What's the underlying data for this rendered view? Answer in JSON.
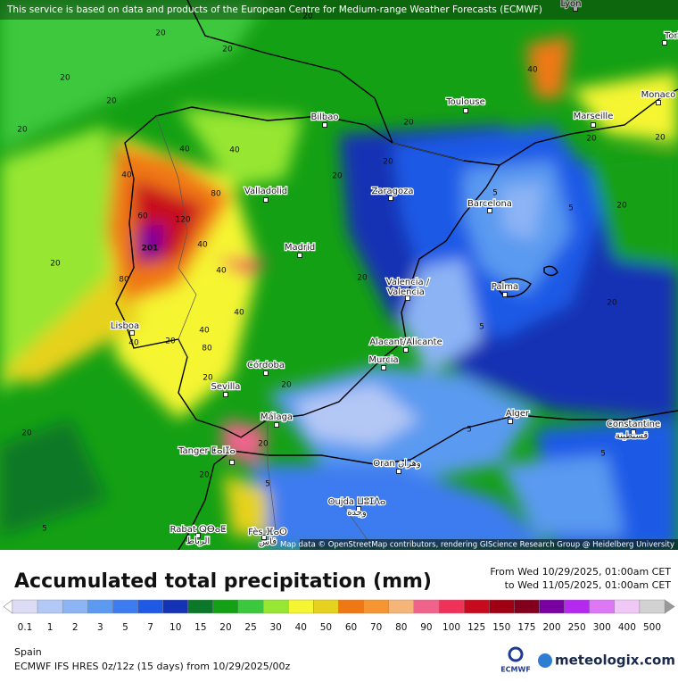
{
  "banner": "This service is based on data and products of the European Centre for Medium-range Weather Forecasts (ECMWF)",
  "attribution": "Map data © OpenStreetMap contributors, rendering GIScience Research Group @ Heidelberg University",
  "cities": [
    "Lyon",
    "Torin",
    "Monaco",
    "Marseille",
    "Toulouse",
    "Bilbao",
    "Valladolid",
    "Zaragoza",
    "Barcelona",
    "Madrid",
    "Valencia /",
    "Valencia",
    "Palma",
    "Lisboa",
    "Alacant/Alicante",
    "Murcia",
    "Córdoba",
    "Sevilla",
    "Málaga",
    "Alger",
    "Constantine",
    "قسنطينة",
    "Tanger ⵟⴰⵏⵊⴰ",
    "Oran وهران",
    "Oujda ⵡⵓⵊⴷⴰ",
    "وجدة",
    "Rabat ⵕⴱⴰⵟ",
    "الرباط",
    "Fès ⴼⴰⵙ",
    "فاس"
  ],
  "contour_labels": [
    "20",
    "20",
    "20",
    "20",
    "20",
    "40",
    "20",
    "20",
    "40",
    "40",
    "80",
    "60",
    "120",
    "201",
    "40",
    "40",
    "80",
    "80",
    "40",
    "40",
    "40",
    "20",
    "20",
    "20",
    "20",
    "20",
    "20",
    "5",
    "5",
    "5",
    "5",
    "5",
    "20",
    "20",
    "20",
    "20",
    "20",
    "5",
    "5",
    "20",
    "40",
    "20",
    "20"
  ],
  "legend": {
    "title": "Accumulated total precipitation (mm)",
    "from": "From Wed 10/29/2025, 01:00am CET",
    "to": "to Wed 11/05/2025, 01:00am CET",
    "levels": [
      0.1,
      1,
      2,
      3,
      5,
      7,
      10,
      15,
      20,
      25,
      30,
      40,
      50,
      60,
      70,
      80,
      90,
      100,
      125,
      150,
      175,
      200,
      250,
      300,
      400,
      500
    ],
    "colors": [
      "#dcdcf5",
      "#b4c8f5",
      "#8cb4f5",
      "#5a9af0",
      "#3c7cf0",
      "#1e5ae6",
      "#1432b4",
      "#0a7828",
      "#14a014",
      "#3cc83c",
      "#96e632",
      "#f5f532",
      "#e6d21e",
      "#f07814",
      "#f59632",
      "#f5b478",
      "#f0648c",
      "#f0325a",
      "#c80a1e",
      "#a00014",
      "#82001e",
      "#7800a0",
      "#b428f0",
      "#dc78f5",
      "#f0c8f5",
      "#d2d2d2"
    ]
  },
  "footer": {
    "region": "Spain",
    "model": "ECMWF IFS HRES 0z/12z (15 days) from  10/29/2025/00z",
    "ecmwf": "ECMWF",
    "brand": "meteologix.com"
  }
}
